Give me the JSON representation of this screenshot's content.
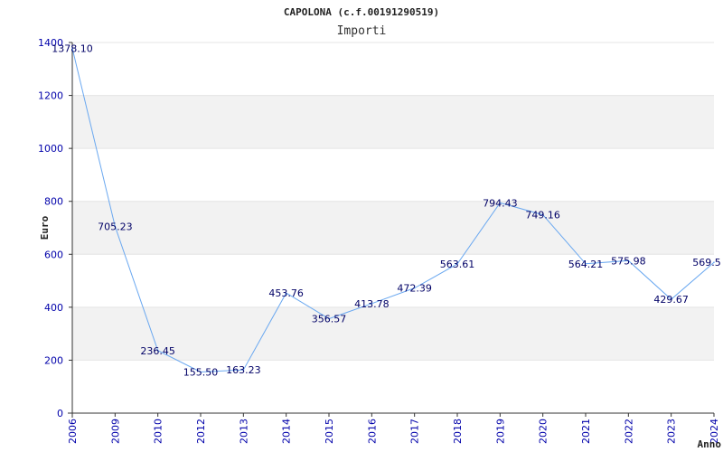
{
  "chart_data": {
    "type": "line",
    "title": "CAPOLONA (c.f.00191290519)",
    "subtitle": "Importi",
    "xlabel": "Anno",
    "ylabel": "Euro",
    "ylim": [
      0,
      1400
    ],
    "yticks": [
      0,
      200,
      400,
      600,
      800,
      1000,
      1200,
      1400
    ],
    "grid": "alternating horizontal bands",
    "categories": [
      "2006",
      "2009",
      "2010",
      "2012",
      "2013",
      "2014",
      "2015",
      "2016",
      "2017",
      "2018",
      "2019",
      "2020",
      "2021",
      "2022",
      "2023",
      "2024"
    ],
    "series": [
      {
        "values": [
          1378.1,
          705.23,
          236.45,
          155.5,
          163.23,
          453.76,
          356.57,
          413.78,
          472.39,
          563.61,
          794.43,
          749.16,
          564.21,
          575.98,
          429.67,
          569.5
        ],
        "labels": [
          "1378.10",
          "705.23",
          "236.45",
          "155.50",
          "163.23",
          "453.76",
          "356.57",
          "413.78",
          "472.39",
          "563.61",
          "794.43",
          "749.16",
          "564.21",
          "575.98",
          "429.67",
          "569.5"
        ]
      }
    ],
    "colors": {
      "line": "#6aa8f0",
      "band": "#f2f2f2",
      "tick_text": "#0000aa",
      "label_text": "#000066"
    }
  }
}
